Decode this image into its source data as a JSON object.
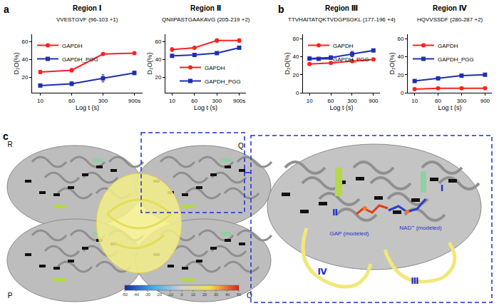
{
  "panel_labels": [
    "a",
    "b",
    "c"
  ],
  "chart_data": [
    {
      "type": "line",
      "title": "Region Ⅰ",
      "subtitle": "VVESTGVF (96-103 +1)",
      "x_label": "Log t (s)",
      "y_label": "D₂O(%)",
      "categories": [
        "10",
        "60",
        "300",
        "900s"
      ],
      "series": [
        {
          "name": "GAPDH",
          "color": "#ff2020",
          "marker": "circle",
          "values": [
            26,
            28,
            46,
            47
          ],
          "errors": [
            2,
            2,
            1,
            1
          ]
        },
        {
          "name": "GAPDH_PGG",
          "color": "#1f2fb0",
          "marker": "square",
          "values": [
            11,
            13,
            19,
            25
          ],
          "errors": [
            1,
            2,
            4,
            2
          ]
        }
      ],
      "ylim": [
        3,
        68
      ],
      "yticks": [
        20,
        40,
        60
      ],
      "grid": false,
      "legend": "upper left"
    },
    {
      "type": "line",
      "title": "Region Ⅱ",
      "subtitle": "QNIIPASTGAAKAVG (205-219 +2)",
      "x_label": "Log t (s)",
      "y_label": "D₂O(%)",
      "categories": [
        "10",
        "60",
        "300",
        "900s"
      ],
      "series": [
        {
          "name": "GAPDH",
          "color": "#ff2020",
          "marker": "circle",
          "values": [
            51,
            53,
            61,
            61
          ],
          "errors": [
            2,
            1,
            2,
            2
          ]
        },
        {
          "name": "GAPDH_PGG",
          "color": "#1f2fb0",
          "marker": "square",
          "values": [
            44,
            45,
            47,
            53
          ],
          "errors": [
            1,
            1,
            1,
            1
          ]
        }
      ],
      "ylim": [
        3,
        68
      ],
      "yticks": [
        20,
        40,
        60
      ],
      "grid": false,
      "legend": "lower right"
    },
    {
      "type": "line",
      "title": "Region Ⅲ",
      "subtitle": "TTVHAITATQKTVDGPSGKL (177-196 +4)",
      "x_label": "Log t (s)",
      "y_label": "D₂O(%)",
      "categories": [
        "10",
        "60",
        "300",
        "900"
      ],
      "series": [
        {
          "name": "GAPDH",
          "color": "#ff2020",
          "marker": "circle",
          "values": [
            32,
            33,
            35,
            37
          ],
          "errors": [
            1,
            1,
            1,
            1
          ]
        },
        {
          "name": "GAPDH_PGG",
          "color": "#1f2fb0",
          "marker": "square",
          "values": [
            38,
            39,
            43,
            47
          ],
          "errors": [
            2,
            2,
            3,
            1
          ]
        }
      ],
      "ylim": [
        0,
        65
      ],
      "yticks": [
        0,
        20,
        40,
        60
      ],
      "grid": false,
      "legend": "upper left"
    },
    {
      "type": "line",
      "title": "Region Ⅳ",
      "subtitle": "HQVVSSDF (280-287 +2)",
      "x_label": "Log t (s)",
      "y_label": "D₂O(%)",
      "categories": [
        "10",
        "60",
        "300",
        "900"
      ],
      "series": [
        {
          "name": "GAPDH",
          "color": "#ff2020",
          "marker": "circle",
          "values": [
            4,
            5,
            5,
            5
          ],
          "errors": [
            1,
            1,
            1,
            1
          ]
        },
        {
          "name": "GAPDH_PGG",
          "color": "#1f2fb0",
          "marker": "square",
          "values": [
            13,
            16,
            19,
            20
          ],
          "errors": [
            1,
            1,
            2,
            1
          ]
        }
      ],
      "ylim": [
        0,
        65
      ],
      "yticks": [
        0,
        20,
        40,
        60
      ],
      "grid": false,
      "legend": "upper left"
    }
  ],
  "structure": {
    "subunits": [
      "R",
      "Q",
      "P",
      "O"
    ],
    "regions": [
      "Ⅰ",
      "Ⅱ",
      "Ⅲ",
      "Ⅳ"
    ],
    "ligands": [
      "GAP (modeled)",
      "NAD⁺ (modeled)"
    ],
    "colorbar": {
      "range": [
        -50,
        50
      ],
      "ticks": [
        -50,
        -40,
        -30,
        -20,
        -10,
        0,
        10,
        20,
        30,
        40,
        50
      ]
    }
  }
}
